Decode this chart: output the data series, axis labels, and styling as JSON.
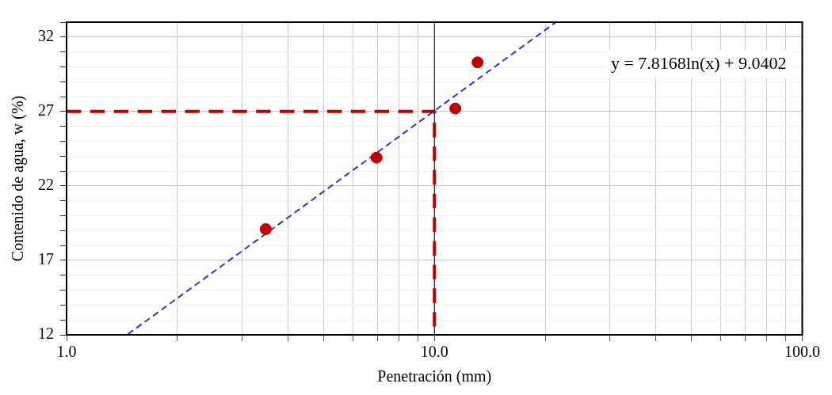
{
  "chart_data": {
    "type": "scatter",
    "xlabel": "Penetración (mm)",
    "ylabel": "Contenido de agua, w (%)",
    "log": "x",
    "grid": true,
    "legend": false,
    "xlim": [
      1,
      100
    ],
    "xticks": [
      {
        "value": 1,
        "label": "1.0"
      },
      {
        "value": 2,
        "label": null
      },
      {
        "value": 3,
        "label": null
      },
      {
        "value": 4,
        "label": null
      },
      {
        "value": 5,
        "label": null
      },
      {
        "value": 6,
        "label": null
      },
      {
        "value": 7,
        "label": null
      },
      {
        "value": 8,
        "label": null
      },
      {
        "value": 9,
        "label": null
      },
      {
        "value": 10,
        "label": "10.0"
      },
      {
        "value": 20,
        "label": null
      },
      {
        "value": 30,
        "label": null
      },
      {
        "value": 40,
        "label": null
      },
      {
        "value": 50,
        "label": null
      },
      {
        "value": 60,
        "label": null
      },
      {
        "value": 70,
        "label": null
      },
      {
        "value": 80,
        "label": null
      },
      {
        "value": 90,
        "label": null
      },
      {
        "value": 100,
        "label": "100.0"
      }
    ],
    "ylim": [
      12,
      33
    ],
    "yticks": [
      12,
      {
        "value": 13,
        "label": null
      },
      {
        "value": 14,
        "label": null
      },
      {
        "value": 15,
        "label": null
      },
      {
        "value": 16,
        "label": null
      },
      17,
      {
        "value": 18,
        "label": null
      },
      {
        "value": 19,
        "label": null
      },
      {
        "value": 20,
        "label": null
      },
      {
        "value": 21,
        "label": null
      },
      22,
      {
        "value": 23,
        "label": null
      },
      {
        "value": 24,
        "label": null
      },
      {
        "value": 25,
        "label": null
      },
      {
        "value": 26,
        "label": null
      },
      27,
      {
        "value": 28,
        "label": null
      },
      {
        "value": 29,
        "label": null
      },
      {
        "value": 30,
        "label": null
      },
      {
        "value": 31,
        "label": null
      },
      32,
      {
        "value": 33,
        "label": null
      }
    ],
    "series": [
      {
        "color": "#c00000",
        "marker": "circle",
        "x": [
          3.48,
          6.96,
          11.4,
          13.1
        ],
        "values": [
          19.1,
          23.9,
          27.2,
          30.3
        ]
      },
      {
        "type": "line",
        "color": "#3333cc",
        "marker": "none",
        "line_style": "dashed",
        "x": [
          1.47,
          21.4
        ],
        "values": [
          12.05,
          33.0
        ]
      },
      {
        "type": "line",
        "color": "#c00000",
        "marker": "none",
        "line_style": "dashed",
        "x": [
          1,
          10,
          10
        ],
        "values": [
          27,
          27,
          12
        ]
      }
    ],
    "ref_lines": [
      {
        "axis": "x",
        "value": 10,
        "color": "#000000"
      }
    ],
    "annotations": [
      "y = 7.8168ln(x) + 9.0402"
    ]
  }
}
